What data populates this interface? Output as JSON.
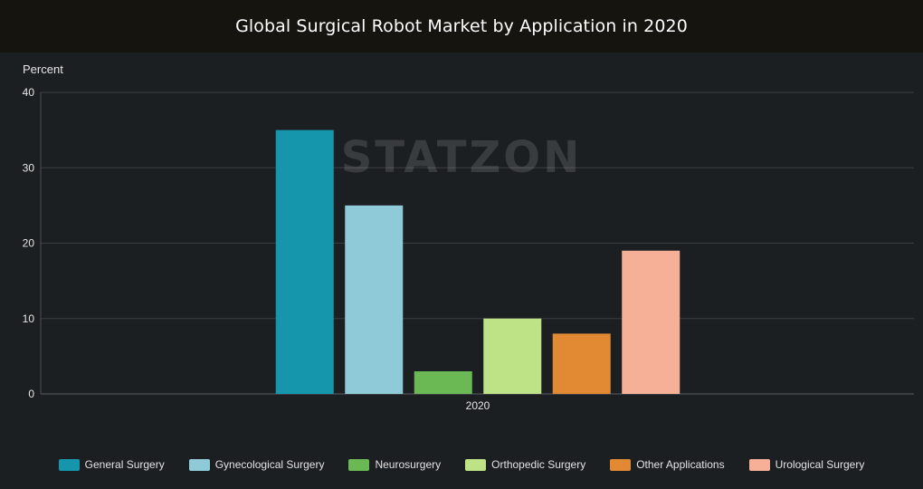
{
  "chart_data": {
    "type": "bar",
    "title": "Global Surgical Robot Market by Application in 2020",
    "ylabel": "Percent",
    "xlabel": "",
    "categories": [
      "2020"
    ],
    "ylim": [
      0,
      40
    ],
    "yticks": [
      0,
      10,
      20,
      30,
      40
    ],
    "grid": true,
    "legend_position": "bottom",
    "series": [
      {
        "name": "General Surgery",
        "values": [
          35
        ],
        "color": "#1596ad"
      },
      {
        "name": "Gynecological Surgery",
        "values": [
          25
        ],
        "color": "#8ecad8"
      },
      {
        "name": "Neurosurgery",
        "values": [
          3
        ],
        "color": "#6ab955"
      },
      {
        "name": "Orthopedic Surgery",
        "values": [
          10
        ],
        "color": "#bee286"
      },
      {
        "name": "Other Applications",
        "values": [
          8
        ],
        "color": "#e18a33"
      },
      {
        "name": "Urological Surgery",
        "values": [
          19
        ],
        "color": "#f6b097"
      }
    ]
  },
  "watermark": "STATZON"
}
